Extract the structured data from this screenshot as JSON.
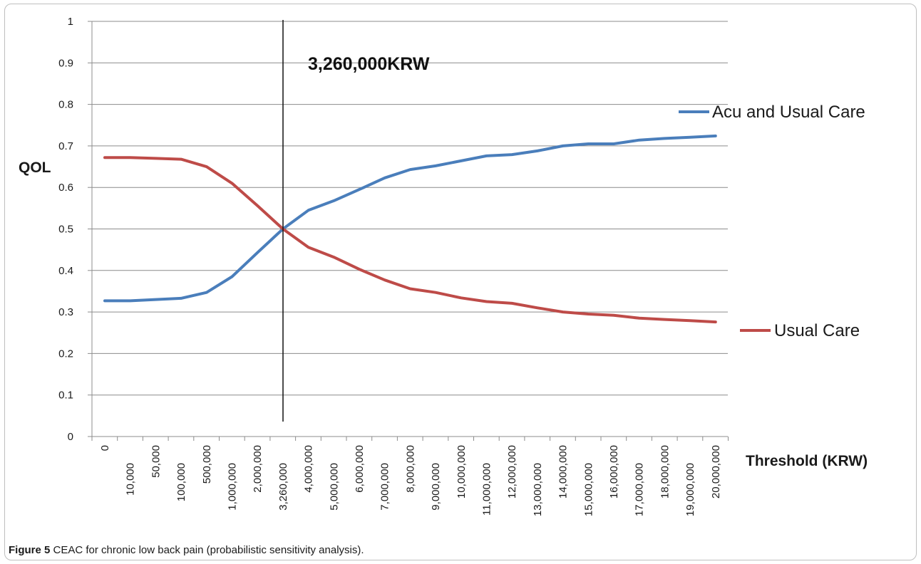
{
  "caption": {
    "bold": "Figure 5",
    "text": " CEAC for chronic low back pain (probabilistic sensitivity analysis)."
  },
  "chart_data": {
    "type": "line",
    "xlabel": "Threshold (KRW)",
    "ylabel": "QOL",
    "ylim": [
      0,
      1
    ],
    "yticks": [
      "0",
      "0.1",
      "0.2",
      "0.3",
      "0.4",
      "0.5",
      "0.6",
      "0.7",
      "0.8",
      "0.9",
      "1"
    ],
    "grid": true,
    "legend_placement": "right",
    "categories": [
      "0",
      "10,000",
      "50,000",
      "100,000",
      "500,000",
      "1,000,000",
      "2,000,000",
      "3,260,000",
      "4,000,000",
      "5,000,000",
      "6,000,000",
      "7,000,000",
      "8,000,000",
      "9,000,000",
      "10,000,000",
      "11,000,000",
      "12,000,000",
      "13,000,000",
      "14,000,000",
      "15,000,000",
      "16,000,000",
      "17,000,000",
      "18,000,000",
      "19,000,000",
      "20,000,000"
    ],
    "series": [
      {
        "name": "Acu and Usual Care",
        "color": "#4a7ebb",
        "values": [
          0.327,
          0.327,
          0.33,
          0.333,
          0.347,
          0.385,
          0.443,
          0.5,
          0.545,
          0.568,
          0.595,
          0.623,
          0.643,
          0.652,
          0.664,
          0.676,
          0.679,
          0.688,
          0.7,
          0.705,
          0.705,
          0.714,
          0.718,
          0.721,
          0.724
        ]
      },
      {
        "name": "Usual Care",
        "color": "#be4b48",
        "values": [
          0.672,
          0.672,
          0.67,
          0.668,
          0.65,
          0.61,
          0.556,
          0.5,
          0.456,
          0.432,
          0.403,
          0.377,
          0.356,
          0.347,
          0.334,
          0.325,
          0.321,
          0.31,
          0.3,
          0.295,
          0.292,
          0.285,
          0.282,
          0.279,
          0.276
        ]
      }
    ],
    "annotation": {
      "label": "3,260,000KRW",
      "x": "3,260,000"
    }
  }
}
